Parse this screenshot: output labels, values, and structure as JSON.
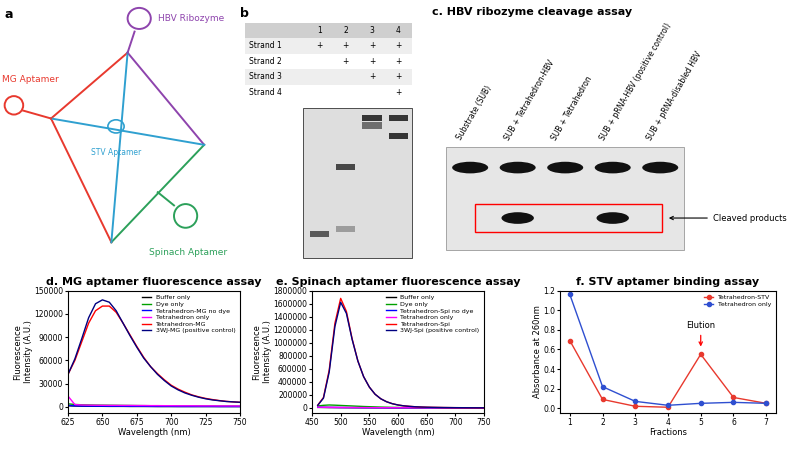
{
  "panels": {
    "a": {
      "label": "a",
      "nodes": [
        {
          "label": "MG Aptamer",
          "color": "#e8392e"
        },
        {
          "label": "HBV Ribozyme",
          "color": "#8e44ad"
        },
        {
          "label": "STV Aptamer",
          "color": "#2fa0d0"
        },
        {
          "label": "Spinach Aptamer",
          "color": "#2ca05a"
        }
      ]
    },
    "b": {
      "label": "b",
      "header": [
        "1",
        "2",
        "3",
        "4"
      ],
      "rows": [
        {
          "label": "Strand 1",
          "cells": [
            "+",
            "+",
            "+",
            "+"
          ]
        },
        {
          "label": "Strand 2",
          "cells": [
            null,
            "+",
            "+",
            "+"
          ]
        },
        {
          "label": "Strand 3",
          "cells": [
            null,
            null,
            "+",
            "+"
          ]
        },
        {
          "label": "Strand 4",
          "cells": [
            null,
            null,
            null,
            "+"
          ]
        }
      ]
    },
    "c": {
      "label": "c.",
      "title": "HBV ribozyme cleavage assay",
      "lanes": [
        "Substrate (SUB)",
        "SUB + Tetrahedron-HBV",
        "SUB + Tetrahedron",
        "SUB + pRNA-HBV (positive control)",
        "SUB + pRNA-disabled HBV"
      ],
      "cleaved_product": [
        false,
        true,
        false,
        true,
        false
      ],
      "annotation": "Cleaved products"
    }
  },
  "chart_data": [
    {
      "type": "line",
      "label": "d.",
      "title": "MG aptamer fluorescence assay",
      "x_label": "Wavelength (nm)",
      "y_label": "Fluorescence\nIntensity (A.U.)",
      "x": [
        625,
        630,
        635,
        640,
        645,
        650,
        655,
        660,
        665,
        670,
        675,
        680,
        685,
        690,
        695,
        700,
        705,
        710,
        715,
        720,
        725,
        730,
        735,
        740,
        745,
        750
      ],
      "xlim": [
        625,
        750
      ],
      "xticks": [
        625,
        650,
        675,
        700,
        725,
        750
      ],
      "ylim": [
        -8000,
        150000
      ],
      "yticks": [
        0,
        30000,
        60000,
        90000,
        120000,
        150000
      ],
      "legend": "upper right",
      "series": [
        {
          "name": "Buffer only",
          "color": "#000000",
          "values": [
            1500,
            1200,
            1000,
            900,
            800,
            800,
            700,
            700,
            700,
            600,
            600,
            600,
            600,
            500,
            500,
            500,
            500,
            500,
            500,
            500,
            500,
            500,
            500,
            500,
            500,
            500
          ]
        },
        {
          "name": "Dye only",
          "color": "#00a000",
          "values": [
            4000,
            3200,
            2800,
            2600,
            2400,
            2300,
            2200,
            2100,
            2000,
            1900,
            1800,
            1700,
            1600,
            1500,
            1400,
            1400,
            1300,
            1300,
            1200,
            1200,
            1100,
            1100,
            1000,
            1000,
            1000,
            900
          ]
        },
        {
          "name": "Tetrahedron-MG no dye",
          "color": "#0000ff",
          "values": [
            2000,
            1500,
            1200,
            1100,
            1000,
            1000,
            900,
            900,
            900,
            800,
            800,
            800,
            700,
            700,
            700,
            700,
            600,
            600,
            600,
            600,
            600,
            600,
            500,
            500,
            500,
            500
          ]
        },
        {
          "name": "Tetrahedron only",
          "color": "#ff00ff",
          "values": [
            14000,
            3000,
            2500,
            2300,
            2200,
            2100,
            2000,
            2000,
            1900,
            1900,
            1800,
            1800,
            1700,
            1700,
            1600,
            1600,
            1500,
            1500,
            1500,
            1400,
            1400,
            1400,
            1300,
            1300,
            1300,
            1200
          ]
        },
        {
          "name": "Tetrahedron-MG",
          "color": "#ff0000",
          "values": [
            42000,
            60000,
            84000,
            108000,
            124000,
            130000,
            130000,
            122000,
            108000,
            93000,
            78000,
            64000,
            52000,
            43000,
            35000,
            28000,
            23000,
            19000,
            15500,
            13000,
            11000,
            9500,
            8200,
            7200,
            6500,
            6000
          ]
        },
        {
          "name": "3WJ-MG (positive control)",
          "color": "#000080",
          "values": [
            42000,
            62000,
            88000,
            115000,
            133000,
            138000,
            135000,
            124000,
            108000,
            92000,
            77000,
            63000,
            52000,
            42000,
            34000,
            27000,
            22000,
            18000,
            15000,
            12500,
            10500,
            9000,
            8000,
            7000,
            6500,
            6000
          ]
        }
      ]
    },
    {
      "type": "line",
      "label": "e.",
      "title": "Spinach aptamer fluorescence assay",
      "x_label": "Wavelength (nm)",
      "y_label": "Fluorescence\nIntensity (A.U.)",
      "x": [
        460,
        470,
        480,
        490,
        500,
        510,
        520,
        530,
        540,
        550,
        560,
        570,
        580,
        590,
        600,
        610,
        620,
        630,
        640,
        650,
        660,
        670,
        680,
        690,
        700,
        710,
        720,
        730,
        740,
        750
      ],
      "xlim": [
        450,
        750
      ],
      "xticks": [
        450,
        500,
        550,
        600,
        650,
        700,
        750
      ],
      "ylim": [
        -80000,
        1800000
      ],
      "yticks": [
        0,
        200000,
        400000,
        600000,
        800000,
        1000000,
        1200000,
        1400000,
        1600000,
        1800000
      ],
      "legend": "upper right",
      "series": [
        {
          "name": "Buffer only",
          "color": "#000000",
          "values": [
            8000,
            7000,
            6000,
            5500,
            5000,
            4500,
            4000,
            3500,
            3000,
            3000,
            2500,
            2500,
            2000,
            2000,
            2000,
            2000,
            1500,
            1500,
            1500,
            1500,
            1500,
            1000,
            1000,
            1000,
            1000,
            1000,
            1000,
            1000,
            1000,
            1000
          ]
        },
        {
          "name": "Dye only",
          "color": "#00a000",
          "values": [
            30000,
            40000,
            45000,
            42000,
            38000,
            34000,
            30000,
            26000,
            22000,
            19000,
            16000,
            13000,
            11000,
            9000,
            7500,
            6000,
            5000,
            4000,
            3500,
            3000,
            2500,
            2000,
            2000,
            1500,
            1500,
            1500,
            1000,
            1000,
            1000,
            1000
          ]
        },
        {
          "name": "Tetrahedron-Spi no dye",
          "color": "#0000ff",
          "values": [
            10000,
            9000,
            8000,
            7000,
            6000,
            5500,
            5000,
            4500,
            4000,
            3500,
            3000,
            3000,
            2500,
            2500,
            2000,
            2000,
            2000,
            1500,
            1500,
            1500,
            1500,
            1500,
            1000,
            1000,
            1000,
            1000,
            1000,
            1000,
            1000,
            1000
          ]
        },
        {
          "name": "Tetrahedron only",
          "color": "#ff00ff",
          "values": [
            12000,
            10000,
            9000,
            8000,
            7000,
            6500,
            6000,
            5500,
            5000,
            4500,
            4000,
            3500,
            3000,
            3000,
            2500,
            2500,
            2000,
            2000,
            2000,
            1500,
            1500,
            1500,
            1500,
            1000,
            1000,
            1000,
            1000,
            1000,
            1000,
            1000
          ]
        },
        {
          "name": "Tetrahedron-Spi",
          "color": "#ff0000",
          "values": [
            42000,
            160000,
            580000,
            1300000,
            1680000,
            1480000,
            1060000,
            720000,
            480000,
            320000,
            210000,
            140000,
            95000,
            65000,
            45000,
            32000,
            24000,
            18000,
            14000,
            11000,
            9000,
            7500,
            6000,
            5000,
            4000,
            3500,
            3000,
            2500,
            2000,
            2000
          ]
        },
        {
          "name": "3WJ-Spi (positive control)",
          "color": "#000080",
          "values": [
            40000,
            150000,
            550000,
            1250000,
            1620000,
            1450000,
            1050000,
            720000,
            480000,
            320000,
            210000,
            140000,
            95000,
            65000,
            45000,
            32000,
            24000,
            18000,
            14000,
            11000,
            9000,
            7500,
            6000,
            5000,
            4000,
            3500,
            3000,
            2500,
            2000,
            2000
          ]
        }
      ]
    },
    {
      "type": "line",
      "label": "f.",
      "title": "STV aptamer binding assay",
      "x_label": "Fractions",
      "y_label": "Absorbance at 260nm",
      "x": [
        1,
        2,
        3,
        4,
        5,
        6,
        7
      ],
      "xlim": [
        0.7,
        7.3
      ],
      "xticks": [
        1,
        2,
        3,
        4,
        5,
        6,
        7
      ],
      "ylim": [
        -0.05,
        1.2
      ],
      "yticks": [
        {
          "value": 0,
          "label": "0.0"
        },
        0.2,
        0.4,
        0.6,
        0.8,
        {
          "value": 1,
          "label": "1.0"
        },
        1.2
      ],
      "legend": "upper right",
      "annotations": [
        {
          "text": "Elution",
          "x": 5
        }
      ],
      "series": [
        {
          "name": "Tetrahedron-STV",
          "color": "#e8392e",
          "marker": "o",
          "values": [
            0.69,
            0.09,
            0.02,
            0.01,
            0.55,
            0.11,
            0.05
          ]
        },
        {
          "name": "Tetrahedron only",
          "color": "#2f4fd0",
          "marker": "o",
          "values": [
            1.16,
            0.22,
            0.07,
            0.03,
            0.05,
            0.06,
            0.05
          ]
        }
      ]
    }
  ]
}
